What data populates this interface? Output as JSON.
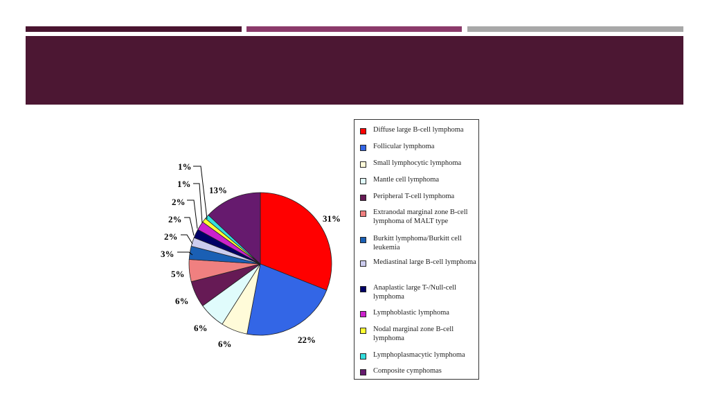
{
  "colors": {
    "bar1": "#4a1530",
    "bar2": "#8b3a6a",
    "bar3": "#a8a8a8",
    "banner": "#4c1733"
  },
  "chart_data": {
    "type": "pie",
    "title": "",
    "start_angle_deg": 0,
    "direction": "clockwise",
    "slices": [
      {
        "label": "Diffuse large B-cell lymphoma",
        "value": 31,
        "display": "31%",
        "color": "#ff0000"
      },
      {
        "label": "Follicular lymphoma",
        "value": 22,
        "display": "22%",
        "color": "#3366e6"
      },
      {
        "label": "Small lymphocytic lymphoma",
        "value": 6,
        "display": "6%",
        "color": "#fffbd9"
      },
      {
        "label": "Mantle cell lymphoma",
        "value": 6,
        "display": "6%",
        "color": "#e0fcfc"
      },
      {
        "label": "Peripheral  T-cell lymphoma",
        "value": 6,
        "display": "6%",
        "color": "#661a55"
      },
      {
        "label": "Extranodal marginal zone B-cell lymphoma of MALT type",
        "value": 5,
        "display": "5%",
        "color": "#f08080"
      },
      {
        "label": "Burkitt lymphoma/Burkitt cell leukemia",
        "value": 3,
        "display": "3%",
        "color": "#1a5fb4"
      },
      {
        "label": "Mediastinal large B-cell lymphoma",
        "value": 2,
        "display": "2%",
        "color": "#ccccee"
      },
      {
        "label": "Anaplastic large T-/Null-cell lymphoma",
        "value": 2,
        "display": "2%",
        "color": "#000066"
      },
      {
        "label": "Lymphoblastic lymphoma",
        "value": 2,
        "display": "2%",
        "color": "#cc22cc"
      },
      {
        "label": "Nodal marginal zone B-cell lymphoma",
        "value": 1,
        "display": "1%",
        "color": "#ffff33"
      },
      {
        "label": "Lymphoplasmacytic lymphoma",
        "value": 1,
        "display": "1%",
        "color": "#33dddd"
      },
      {
        "label": "Composite cymphomas",
        "value": 13,
        "display": "13%",
        "color": "#661a6e"
      }
    ],
    "legend_position": "right"
  }
}
